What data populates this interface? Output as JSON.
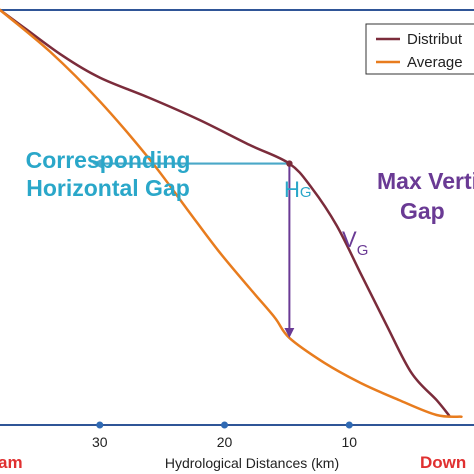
{
  "chart_data": {
    "type": "line",
    "xlabel": "Hydrological Distances (km)",
    "x_ticks": [
      30,
      20,
      10
    ],
    "xlim": [
      38,
      0
    ],
    "ylim": [
      0,
      100
    ],
    "grid": false,
    "legend_position": "top-right",
    "series": [
      {
        "name": "Distribut",
        "color": "#7b2c3b",
        "x": [
          38.0,
          36.0,
          33.0,
          30.0,
          26.0,
          22.0,
          18.0,
          14.8,
          13.0,
          11.0,
          9.0,
          7.0,
          5.0,
          3.0,
          2.0
        ],
        "y": [
          100.0,
          95.6,
          89.0,
          83.7,
          78.8,
          73.5,
          67.5,
          63.0,
          57.1,
          48.0,
          36.0,
          24.0,
          12.5,
          6.0,
          2.3
        ]
      },
      {
        "name": "Average",
        "color": "#e87c1e",
        "x": [
          38.0,
          34.0,
          30.0,
          26.0,
          23.0,
          20.5,
          18.0,
          16.0,
          14.8,
          12.0,
          9.0,
          6.0,
          3.0,
          1.0
        ],
        "y": [
          100.0,
          90.0,
          78.0,
          64.0,
          52.0,
          42.0,
          33.0,
          26.0,
          21.0,
          15.0,
          10.0,
          6.0,
          2.4,
          2.0
        ]
      }
    ],
    "annotations": {
      "horizontal_gap_label": [
        "Corresponding",
        "Horizontal Gap"
      ],
      "hg_main": "H",
      "hg_sub": "G",
      "vg_main": "V",
      "vg_sub": "G",
      "max_vertical_gap_label": [
        "Max Verti",
        "Gap"
      ],
      "left_end_label": "am",
      "right_end_label": "Down",
      "max_gap_x": 14.8,
      "max_gap_y_top": 63.0,
      "max_gap_y_bottom": 21.0,
      "horizontal_gap_x_end": 30.6
    },
    "colors": {
      "axis": "#2f5597",
      "tick_dot": "#2f6ab4",
      "hg_arrow": "#4aa8c8",
      "hg_text": "#2aa7c9",
      "vg_arrow": "#6a3a94",
      "vg_text": "#6a3a94",
      "end_label": "#e03030",
      "frame": "#2f5597"
    }
  }
}
